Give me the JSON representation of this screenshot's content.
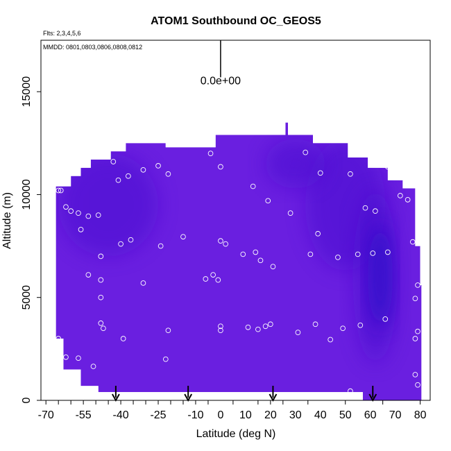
{
  "chart_data": {
    "type": "heatmap",
    "title": "ATOM1 Southbound OC_GEOS5",
    "flights_note": "Flts: 2,3,4,5,6",
    "dates_note": "MMDD: 0801,0803,0806,0808,0812",
    "xlabel": "Latitude (deg N)",
    "ylabel": "Altitude (m)",
    "xlim": [
      -72,
      84
    ],
    "ylim": [
      0,
      17500
    ],
    "x_ticks": [
      -70,
      -55,
      -40,
      -25,
      -10,
      5,
      20,
      35,
      50,
      65,
      80
    ],
    "x_tick_labels": [
      "-70",
      "-55",
      "-40",
      "-25",
      "-10",
      "0",
      "10",
      "20",
      "30",
      "40",
      "50",
      "60",
      "70",
      "80"
    ],
    "x_label_values": [
      -70,
      -55,
      -40,
      -25,
      -10,
      0,
      10,
      20,
      30,
      40,
      50,
      60,
      70,
      80
    ],
    "x_minor_ticks": [
      -65,
      -60,
      -50,
      -45,
      -35,
      -30,
      -20,
      -15,
      -5,
      15,
      25
    ],
    "y_ticks": [
      0,
      5000,
      10000,
      15000
    ],
    "y_tick_labels": [
      "0",
      "5000",
      "10000",
      "15000"
    ],
    "scale_bar": {
      "label": "0.0e+00",
      "x": 0,
      "y_top": 17500,
      "y_bottom": 15700
    },
    "colors": {
      "base": "#6a1fe0",
      "dark": "#4a10d0",
      "darkest": "#2a08c8",
      "marker": "#ffffff",
      "axis": "#000000"
    },
    "field_envelope": [
      [
        -66,
        0
      ],
      [
        -66,
        10400
      ],
      [
        -60,
        10400
      ],
      [
        -60,
        10900
      ],
      [
        -56,
        10900
      ],
      [
        -56,
        11300
      ],
      [
        -52,
        11300
      ],
      [
        -52,
        11700
      ],
      [
        -44,
        11700
      ],
      [
        -44,
        12100
      ],
      [
        -38,
        12100
      ],
      [
        -38,
        12500
      ],
      [
        -22,
        12500
      ],
      [
        -22,
        12300
      ],
      [
        -2,
        12300
      ],
      [
        -2,
        12900
      ],
      [
        26,
        12900
      ],
      [
        26,
        13500
      ],
      [
        27,
        13500
      ],
      [
        27,
        12900
      ],
      [
        37,
        12900
      ],
      [
        37,
        12500
      ],
      [
        51,
        12500
      ],
      [
        51,
        11800
      ],
      [
        59,
        11800
      ],
      [
        59,
        11300
      ],
      [
        67,
        11300
      ],
      [
        67,
        10700
      ],
      [
        73,
        10700
      ],
      [
        73,
        10300
      ],
      [
        78,
        10300
      ],
      [
        78,
        7500
      ],
      [
        80,
        7500
      ],
      [
        80,
        5600
      ],
      [
        80.5,
        5600
      ],
      [
        80.5,
        0
      ],
      [
        57,
        0
      ],
      [
        57,
        400
      ],
      [
        -49,
        400
      ],
      [
        -49,
        700
      ],
      [
        -56,
        700
      ],
      [
        -56,
        1500
      ],
      [
        -63,
        1500
      ],
      [
        -63,
        3000
      ],
      [
        -66,
        3000
      ]
    ],
    "dark_regions": [
      {
        "cx": 50,
        "cy": 9500,
        "rx": 16,
        "ry": 3200,
        "shade": "dark"
      },
      {
        "cx": 62,
        "cy": 6000,
        "rx": 9,
        "ry": 4200,
        "shade": "dark"
      },
      {
        "cx": 64,
        "cy": 6000,
        "rx": 5,
        "ry": 2500,
        "shade": "darkest"
      },
      {
        "cx": -45,
        "cy": 9500,
        "rx": 20,
        "ry": 2500,
        "shade": "dark"
      },
      {
        "cx": 30,
        "cy": 11500,
        "rx": 12,
        "ry": 1200,
        "shade": "dark"
      }
    ],
    "points": [
      [
        -65,
        10200
      ],
      [
        -64,
        10200
      ],
      [
        -62,
        9400
      ],
      [
        -60,
        9200
      ],
      [
        -57,
        9100
      ],
      [
        -53,
        8950
      ],
      [
        -49,
        9000
      ],
      [
        -56,
        8300
      ],
      [
        -43,
        11600
      ],
      [
        -41,
        10700
      ],
      [
        -37,
        10900
      ],
      [
        -31,
        11200
      ],
      [
        -25,
        11400
      ],
      [
        -21,
        11000
      ],
      [
        -4,
        12000
      ],
      [
        0,
        11350
      ],
      [
        13,
        10400
      ],
      [
        19,
        9700
      ],
      [
        28,
        9100
      ],
      [
        34,
        12050
      ],
      [
        40,
        11050
      ],
      [
        52,
        11000
      ],
      [
        58,
        9350
      ],
      [
        62,
        9200
      ],
      [
        67,
        11350
      ],
      [
        72,
        9950
      ],
      [
        75,
        9750
      ],
      [
        39,
        8100
      ],
      [
        -40,
        7600
      ],
      [
        -36,
        7800
      ],
      [
        -24,
        7500
      ],
      [
        -15,
        7950
      ],
      [
        -3,
        6100
      ],
      [
        0,
        7750
      ],
      [
        2,
        7600
      ],
      [
        9,
        7100
      ],
      [
        14,
        7200
      ],
      [
        16,
        6800
      ],
      [
        21,
        6500
      ],
      [
        36,
        7100
      ],
      [
        47,
        6950
      ],
      [
        55,
        7100
      ],
      [
        61,
        7150
      ],
      [
        67,
        7200
      ],
      [
        77,
        7700
      ],
      [
        -48,
        7000
      ],
      [
        -53,
        6100
      ],
      [
        -48,
        5850
      ],
      [
        -31,
        5700
      ],
      [
        -6,
        5900
      ],
      [
        -1,
        5850
      ],
      [
        -48,
        5000
      ],
      [
        78,
        4950
      ],
      [
        79,
        5600
      ],
      [
        66,
        3950
      ],
      [
        -48,
        3750
      ],
      [
        -47,
        3500
      ],
      [
        -21,
        3400
      ],
      [
        0,
        3600
      ],
      [
        0,
        3400
      ],
      [
        11,
        3550
      ],
      [
        15,
        3450
      ],
      [
        18,
        3600
      ],
      [
        20,
        3700
      ],
      [
        31,
        3300
      ],
      [
        38,
        3700
      ],
      [
        44,
        2950
      ],
      [
        49,
        3500
      ],
      [
        56,
        3650
      ],
      [
        79,
        3350
      ],
      [
        78,
        3000
      ],
      [
        -65,
        3000
      ],
      [
        -39,
        3000
      ],
      [
        -57,
        2050
      ],
      [
        -62,
        2100
      ],
      [
        -51,
        1650
      ],
      [
        -22,
        2000
      ],
      [
        78,
        1250
      ],
      [
        79,
        750
      ],
      [
        -57,
        200
      ],
      [
        -52,
        200
      ],
      [
        -47,
        200
      ],
      [
        -43,
        200
      ],
      [
        -36,
        200
      ],
      [
        -31,
        200
      ],
      [
        -22,
        150
      ],
      [
        -14,
        200
      ],
      [
        -7,
        200
      ],
      [
        0,
        200
      ],
      [
        0,
        200
      ],
      [
        4,
        200
      ],
      [
        10,
        200
      ],
      [
        14,
        200
      ],
      [
        18,
        200
      ],
      [
        37,
        200
      ],
      [
        42,
        200
      ],
      [
        47,
        250
      ],
      [
        52,
        450
      ],
      [
        55,
        150
      ]
    ],
    "flight_arrows": [
      -42,
      -13,
      21,
      61
    ]
  }
}
